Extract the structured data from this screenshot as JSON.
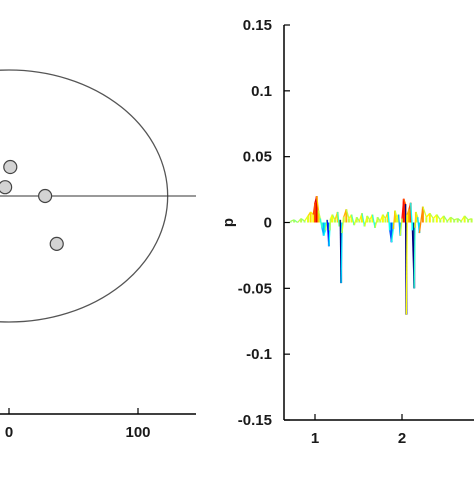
{
  "chart_data": [
    {
      "type": "scatter",
      "title": "",
      "xlabel": "",
      "ylabel": "",
      "x_tick_labels": [
        "0",
        "100"
      ],
      "x_ticks": [
        0,
        100
      ],
      "xlim": [
        -10,
        150
      ],
      "ylim": [
        -1.6,
        1.6
      ],
      "grid": false,
      "ellipse": {
        "center": [
          0,
          0
        ],
        "radius_x": 123,
        "radius_y": 1.0
      },
      "baseline_y": 0,
      "points": [
        {
          "x": 1,
          "y": 0.23
        },
        {
          "x": -3,
          "y": 0.07
        },
        {
          "x": 28,
          "y": 0.0
        },
        {
          "x": 37,
          "y": -0.38
        }
      ],
      "colors": {
        "axis": "#000000",
        "ellipse": "#555555",
        "point_fill": "#d3d3d3",
        "point_stroke": "#444444"
      }
    },
    {
      "type": "line",
      "title": "",
      "xlabel": "",
      "ylabel": "p",
      "ylim": [
        -0.15,
        0.15
      ],
      "y_tick_values": [
        -0.15,
        -0.1,
        -0.05,
        0,
        0.05,
        0.1,
        0.15
      ],
      "y_tick_labels": [
        "-0.15",
        "-0.1",
        "-0.05",
        "0",
        "0.05",
        "0.1",
        "0.15"
      ],
      "xlim": [
        0.7,
        3.2
      ],
      "x_tick_values": [
        1,
        2
      ],
      "x_tick_labels": [
        "1",
        "2"
      ],
      "grid": false,
      "colormap": "jet",
      "series": [
        {
          "x": [
            0.72,
            0.76,
            0.8,
            0.84,
            0.88,
            0.92,
            0.95,
            0.98,
            1.0,
            1.02,
            1.04,
            1.06,
            1.08,
            1.1,
            1.12,
            1.14,
            1.16,
            1.17,
            1.18,
            1.2,
            1.23,
            1.26,
            1.28,
            1.29,
            1.3,
            1.31,
            1.33,
            1.36,
            1.39,
            1.42,
            1.45,
            1.48,
            1.51,
            1.54,
            1.57,
            1.6,
            1.63,
            1.66,
            1.69,
            1.72,
            1.75,
            1.78,
            1.81,
            1.84,
            1.86,
            1.88,
            1.9,
            1.92,
            1.94,
            1.96,
            1.98,
            2.0,
            2.02,
            2.04,
            2.05,
            2.06,
            2.08,
            2.1,
            2.12,
            2.14,
            2.15,
            2.16,
            2.18,
            2.2,
            2.24,
            2.28,
            2.32,
            2.36,
            2.4,
            2.44,
            2.48,
            2.52,
            2.56,
            2.6,
            2.64,
            2.68,
            2.72,
            2.76,
            2.8,
            2.84
          ],
          "y": [
            0.001,
            0.002,
            0.0,
            0.003,
            0.001,
            0.005,
            0.008,
            0.006,
            0.015,
            0.02,
            0.009,
            0.003,
            -0.004,
            -0.01,
            -0.006,
            0.002,
            -0.018,
            -0.006,
            0.003,
            0.006,
            0.002,
            0.008,
            -0.003,
            0.002,
            -0.046,
            -0.008,
            0.004,
            0.01,
            0.003,
            0.006,
            -0.002,
            0.004,
            0.001,
            0.007,
            -0.003,
            0.005,
            0.002,
            0.006,
            -0.004,
            0.004,
            0.001,
            0.006,
            0.003,
            0.008,
            -0.006,
            -0.015,
            -0.005,
            0.009,
            0.004,
            0.006,
            -0.01,
            0.003,
            0.018,
            0.014,
            -0.07,
            0.006,
            0.01,
            0.015,
            -0.006,
            -0.05,
            -0.004,
            0.008,
            0.004,
            -0.008,
            0.012,
            0.004,
            0.007,
            0.003,
            0.006,
            0.002,
            0.005,
            0.001,
            0.004,
            0.002,
            0.003,
            0.001,
            0.005,
            0.002,
            0.003,
            0.001
          ]
        }
      ],
      "colors": {
        "axis": "#000000"
      }
    }
  ]
}
